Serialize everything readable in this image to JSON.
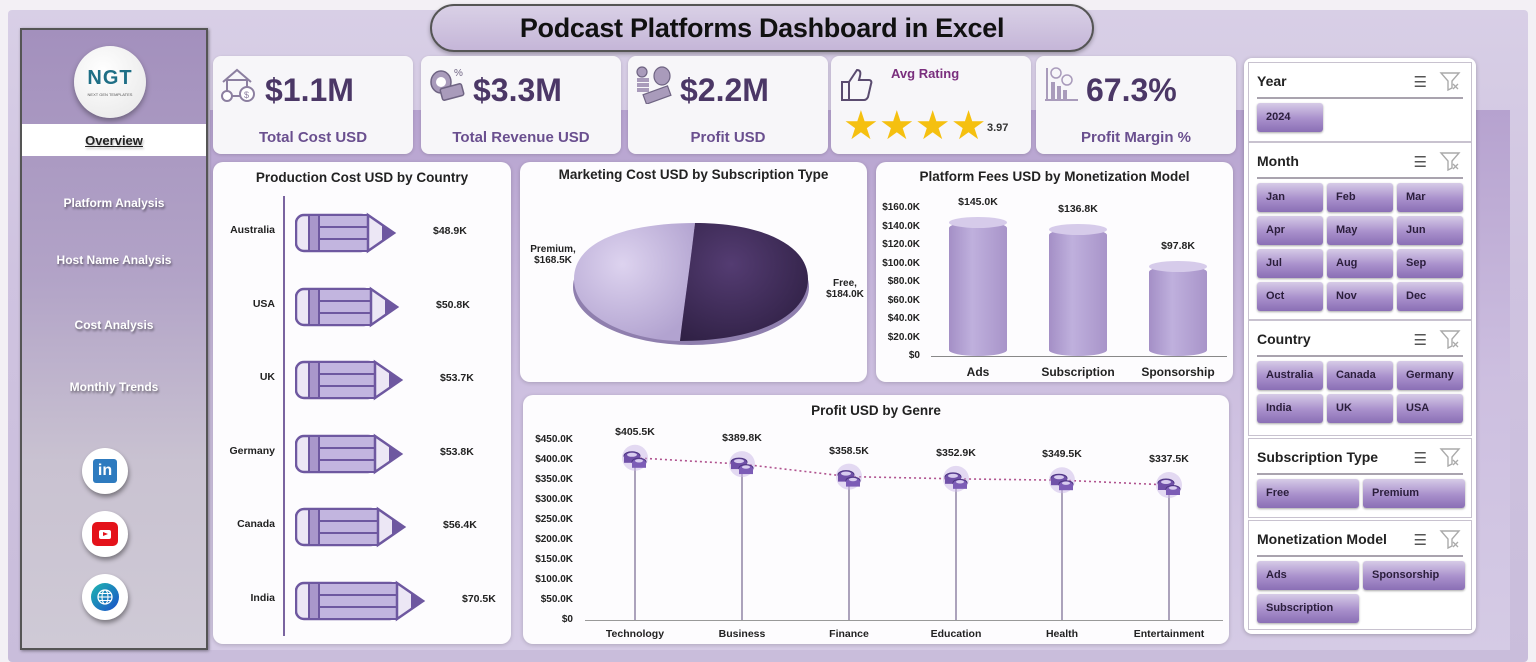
{
  "header": {
    "title": "Podcast Platforms Dashboard in Excel"
  },
  "sidebar": {
    "logo_text": "NGT",
    "logo_sub": "NEXT GEN TEMPLATES",
    "items": [
      {
        "label": "Overview",
        "active": true
      },
      {
        "label": "Platform Analysis"
      },
      {
        "label": "Host Name Analysis"
      },
      {
        "label": "Cost Analysis"
      },
      {
        "label": "Monthly Trends"
      }
    ],
    "social": [
      {
        "icon": "linkedin-icon",
        "glyph": "in"
      },
      {
        "icon": "youtube-icon"
      },
      {
        "icon": "globe-icon"
      }
    ]
  },
  "kpis": {
    "total_cost": {
      "value": "$1.1M",
      "label": "Total Cost USD",
      "icon": "house-money-icon"
    },
    "total_revenue": {
      "value": "$3.3M",
      "label": "Total Revenue USD",
      "icon": "money-bag-icon"
    },
    "profit": {
      "value": "$2.2M",
      "label": "Profit USD",
      "icon": "coins-cash-icon"
    },
    "avg_rating": {
      "label": "Avg Rating",
      "value": "3.97",
      "stars": "★★★★",
      "icon": "thumbs-up-icon"
    },
    "profit_margin": {
      "value": "67.3%",
      "label": "Profit Margin %",
      "icon": "chart-decline-icon"
    }
  },
  "chart_data": [
    {
      "type": "bar",
      "orientation": "horizontal",
      "title": "Production Cost USD by Country",
      "categories": [
        "Australia",
        "USA",
        "UK",
        "Germany",
        "Canada",
        "India"
      ],
      "values": [
        48.9,
        50.8,
        53.7,
        53.8,
        56.4,
        70.5
      ],
      "data_labels": [
        "$48.9K",
        "$50.8K",
        "$53.7K",
        "$53.8K",
        "$56.4K",
        "$70.5K"
      ],
      "unit": "USD thousands",
      "marker": "pencil"
    },
    {
      "type": "pie",
      "title": "Marketing Cost USD by Subscription Type",
      "categories": [
        "Premium",
        "Free"
      ],
      "values": [
        168.5,
        184.0
      ],
      "data_labels": [
        "Premium,\n$168.5K",
        "Free,\n$184.0K"
      ],
      "colors": [
        "#c9bde6",
        "#4a3566"
      ]
    },
    {
      "type": "bar",
      "title": "Platform Fees USD by Monetization Model",
      "categories": [
        "Ads",
        "Subscription",
        "Sponsorship"
      ],
      "values": [
        145.0,
        136.8,
        97.8
      ],
      "data_labels": [
        "$145.0K",
        "$136.8K",
        "$97.8K"
      ],
      "yticks": [
        "$160.0K",
        "$140.0K",
        "$120.0K",
        "$100.0K",
        "$80.0K",
        "$60.0K",
        "$40.0K",
        "$20.0K",
        "$0"
      ],
      "ylim": [
        0,
        160
      ],
      "shape": "cylinder"
    },
    {
      "type": "line",
      "title": "Profit USD by Genre",
      "categories": [
        "Technology",
        "Business",
        "Finance",
        "Education",
        "Health",
        "Entertainment"
      ],
      "values": [
        405.5,
        389.8,
        358.5,
        352.9,
        349.5,
        337.5
      ],
      "data_labels": [
        "$405.5K",
        "$389.8K",
        "$358.5K",
        "$352.9K",
        "$349.5K",
        "$337.5K"
      ],
      "yticks": [
        "$450.0K",
        "$400.0K",
        "$350.0K",
        "$300.0K",
        "$250.0K",
        "$200.0K",
        "$150.0K",
        "$100.0K",
        "$50.0K",
        "$0"
      ],
      "ylim": [
        0,
        450
      ],
      "marker": "coins",
      "line_style": "dotted"
    }
  ],
  "slicers": {
    "year": {
      "title": "Year",
      "items": [
        "2024"
      ]
    },
    "month": {
      "title": "Month",
      "items": [
        "Jan",
        "Feb",
        "Mar",
        "Apr",
        "May",
        "Jun",
        "Jul",
        "Aug",
        "Sep",
        "Oct",
        "Nov",
        "Dec"
      ]
    },
    "country": {
      "title": "Country",
      "items": [
        "Australia",
        "Canada",
        "Germany",
        "India",
        "UK",
        "USA"
      ]
    },
    "subscription": {
      "title": "Subscription Type",
      "items": [
        "Free",
        "Premium"
      ]
    },
    "monetization": {
      "title": "Monetization Model",
      "items": [
        "Ads",
        "Sponsorship",
        "Subscription"
      ]
    }
  },
  "colors": {
    "accent": "#4b3766",
    "label": "#6a4f8f",
    "star": "#f5c010",
    "bar": "#b3a2d3",
    "dark": "#4a3566"
  }
}
